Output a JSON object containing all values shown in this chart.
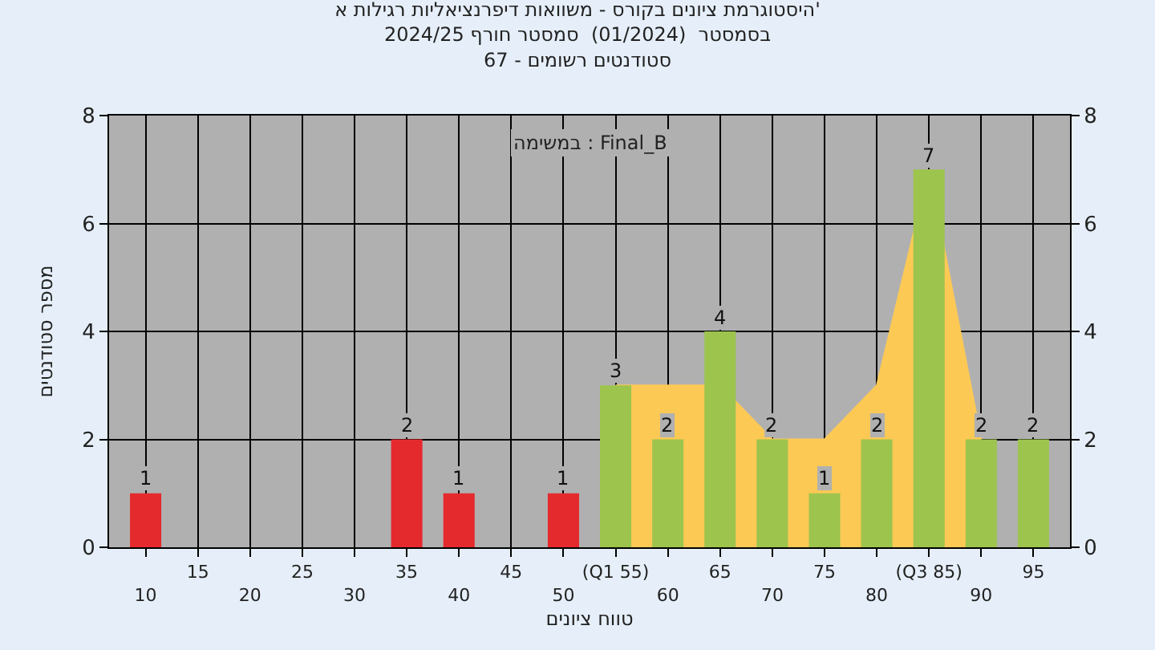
{
  "chart_data": {
    "type": "bar",
    "title": "היסטוגרמת ציונים בקורס - משוואות דיפרנציאליות רגילות א'\nבסמסטר  (01/2024)  סמסטר חורף 2024/25\nסטודנטים רשומים - 67",
    "xlabel": "טווח ציונים",
    "ylabel": "מספר סטודנטים",
    "annotations": [
      "במשימה : Final_B"
    ],
    "categories": [
      "10",
      "15",
      "20",
      "25",
      "30",
      "35",
      "40",
      "45",
      "50",
      "(Q1 55)",
      "60",
      "65",
      "70",
      "75",
      "80",
      "(Q3 85)",
      "90",
      "95"
    ],
    "series": [
      {
        "type": "area",
        "color": "#fdc955",
        "values": [
          null,
          null,
          null,
          null,
          null,
          null,
          null,
          null,
          null,
          3,
          3,
          3,
          2,
          2,
          3,
          7,
          2,
          null
        ]
      },
      {
        "colors": [
          "#e52a2e",
          "#e52a2e",
          "#e52a2e",
          "#e52a2e",
          "#e52a2e",
          "#e52a2e",
          "#e52a2e",
          "#e52a2e",
          "#e52a2e",
          "#9dc44d",
          "#9dc44d",
          "#9dc44d",
          "#9dc44d",
          "#9dc44d",
          "#9dc44d",
          "#9dc44d",
          "#9dc44d",
          "#9dc44d"
        ],
        "values": [
          1,
          0,
          0,
          0,
          0,
          2,
          1,
          0,
          1,
          3,
          2,
          4,
          2,
          1,
          2,
          7,
          2,
          2
        ],
        "value_labels": [
          "1",
          null,
          null,
          null,
          null,
          "2",
          "1",
          null,
          "1",
          "3",
          "2",
          "4",
          "2",
          "1",
          "2",
          "7",
          "2",
          "2"
        ]
      }
    ],
    "ylim": [
      0,
      8
    ],
    "yticks": [
      0,
      2,
      4,
      6,
      8
    ],
    "y2lim": [
      0,
      8
    ],
    "y2ticks": [
      0,
      2,
      4,
      6,
      8
    ],
    "grid": true
  }
}
